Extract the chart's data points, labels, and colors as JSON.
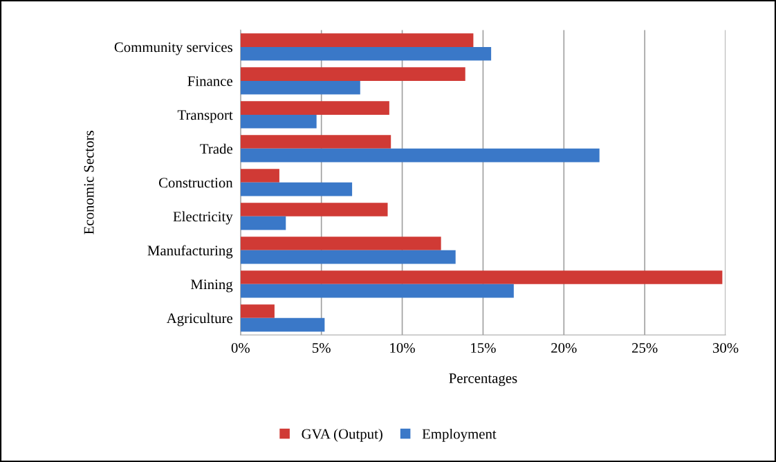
{
  "chart_data": {
    "type": "bar",
    "orientation": "horizontal",
    "xlabel": "Percentages",
    "ylabel": "Economic Sectors",
    "categories": [
      "Community services",
      "Finance",
      "Transport",
      "Trade",
      "Construction",
      "Electricity",
      "Manufacturing",
      "Mining",
      "Agriculture"
    ],
    "series": [
      {
        "name": "GVA (Output)",
        "color": "#d03a35",
        "values": [
          14.4,
          13.9,
          9.2,
          9.3,
          2.4,
          9.1,
          12.4,
          29.8,
          2.1
        ]
      },
      {
        "name": "Employment",
        "color": "#3a78c8",
        "values": [
          15.5,
          7.4,
          4.7,
          22.2,
          6.9,
          2.8,
          13.3,
          16.9,
          5.2
        ]
      }
    ],
    "xlim": [
      0,
      30
    ],
    "xticks": [
      {
        "value": 0,
        "label": "0%"
      },
      {
        "value": 5,
        "label": "5%"
      },
      {
        "value": 10,
        "label": "10%"
      },
      {
        "value": 15,
        "label": "15%"
      },
      {
        "value": 20,
        "label": "20%"
      },
      {
        "value": 25,
        "label": "25%"
      },
      {
        "value": 30,
        "label": "30%"
      }
    ],
    "grid": "x",
    "legend": "bottom"
  }
}
